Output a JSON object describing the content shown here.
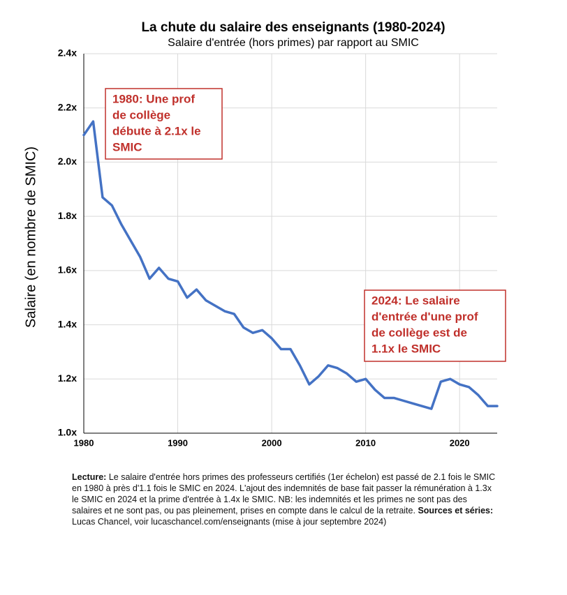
{
  "chart_data": {
    "type": "line",
    "title": "La chute du salaire des enseignants (1980-2024)",
    "subtitle": "Salaire d'entrée (hors primes) par rapport au SMIC",
    "y_label": "Salaire (en nombre de SMIC)",
    "x": [
      1980,
      1981,
      1982,
      1983,
      1984,
      1985,
      1986,
      1987,
      1988,
      1989,
      1990,
      1991,
      1992,
      1993,
      1994,
      1995,
      1996,
      1997,
      1998,
      1999,
      2000,
      2001,
      2002,
      2003,
      2004,
      2005,
      2006,
      2007,
      2008,
      2009,
      2010,
      2011,
      2012,
      2013,
      2014,
      2015,
      2016,
      2017,
      2018,
      2019,
      2020,
      2021,
      2022,
      2023,
      2024
    ],
    "values": [
      2.1,
      2.15,
      1.87,
      1.84,
      1.77,
      1.71,
      1.65,
      1.57,
      1.61,
      1.57,
      1.56,
      1.5,
      1.53,
      1.49,
      1.47,
      1.45,
      1.44,
      1.39,
      1.37,
      1.38,
      1.35,
      1.31,
      1.31,
      1.25,
      1.18,
      1.21,
      1.25,
      1.24,
      1.22,
      1.19,
      1.2,
      1.16,
      1.13,
      1.13,
      1.12,
      1.11,
      1.1,
      1.09,
      1.19,
      1.2,
      1.18,
      1.17,
      1.14,
      1.1,
      1.1
    ],
    "color": "#4472c4",
    "xlim": [
      1980,
      2024
    ],
    "xticks": [
      1980,
      1990,
      2000,
      2010,
      2020
    ],
    "ylim": [
      1.0,
      2.4
    ],
    "yticks": [
      {
        "value": 1.0,
        "label": "1.0x"
      },
      {
        "value": 1.2,
        "label": "1.2x"
      },
      {
        "value": 1.4,
        "label": "1.4x"
      },
      {
        "value": 1.6,
        "label": "1.6x"
      },
      {
        "value": 1.8,
        "label": "1.8x"
      },
      {
        "value": 2.0,
        "label": "2.0x"
      },
      {
        "value": 2.2,
        "label": "2.2x"
      },
      {
        "value": 2.4,
        "label": "2.4x"
      }
    ],
    "grid": true,
    "annotations": [
      {
        "lines": [
          "1980: Une prof",
          "de collège",
          "débute à 2.1x le",
          "SMIC"
        ]
      },
      {
        "lines": [
          "2024: Le salaire",
          "d'entrée d'une prof",
          "de collège est de",
          "1.1x le SMIC"
        ]
      }
    ],
    "note": {
      "lecture_label": "Lecture:",
      "lecture_text": "Le salaire d'entrée hors primes des professeurs certifiés (1er échelon) est passé de 2.1 fois le SMIC en 1980 à près d'1.1 fois le SMIC en 2024. L'ajout des indemnités de base fait passer la rémunération à 1.3x le SMIC en 2024 et la prime d'entrée à 1.4x le SMIC. NB: les indemnités et les primes ne sont pas des salaires et ne sont pas, ou pas pleinement, prises en compte dans le calcul de la retraite.",
      "sources_label": "Sources et séries:",
      "sources_text": "Lucas Chancel, voir lucaschancel.com/enseignants (mise à jour septembre 2024)"
    }
  }
}
